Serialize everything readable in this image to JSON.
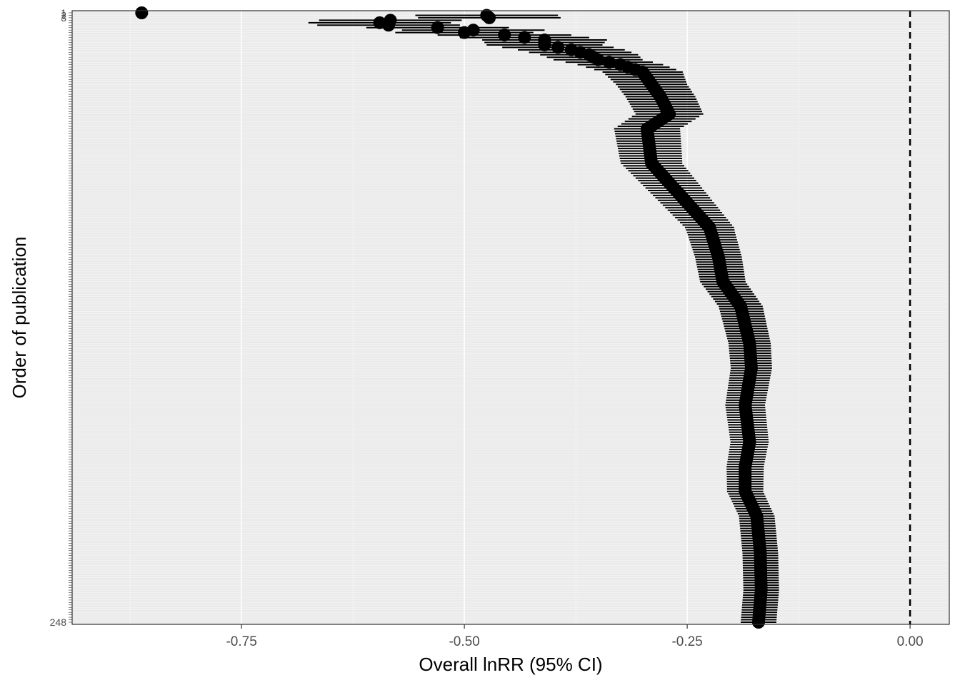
{
  "chart_data": {
    "type": "forest",
    "xlabel": "Overall lnRR (95% CI)",
    "ylabel": "Order of publication",
    "xlim": [
      -0.94,
      0.044
    ],
    "x_ticks": [
      -0.75,
      -0.5,
      -0.25,
      0.0
    ],
    "x_tick_labels": [
      "-0.75",
      "-0.50",
      "-0.25",
      "0.00"
    ],
    "reference_line": 0.0,
    "n_studies": 248,
    "y_tick_labels_visible": [
      "1",
      "2",
      "3",
      "248"
    ],
    "estimate_knots": [
      [
        1,
        -0.862
      ],
      [
        2,
        -0.475
      ],
      [
        3,
        -0.472
      ],
      [
        4,
        -0.583
      ],
      [
        5,
        -0.595
      ],
      [
        6,
        -0.585
      ],
      [
        7,
        -0.53
      ],
      [
        8,
        -0.49
      ],
      [
        9,
        -0.5
      ],
      [
        10,
        -0.455
      ],
      [
        12,
        -0.41
      ],
      [
        14,
        -0.41
      ],
      [
        16,
        -0.38
      ],
      [
        18,
        -0.36
      ],
      [
        20,
        -0.35
      ],
      [
        22,
        -0.325
      ],
      [
        25,
        -0.3
      ],
      [
        35,
        -0.28
      ],
      [
        42,
        -0.27
      ],
      [
        48,
        -0.295
      ],
      [
        62,
        -0.29
      ],
      [
        72,
        -0.265
      ],
      [
        78,
        -0.25
      ],
      [
        88,
        -0.225
      ],
      [
        100,
        -0.215
      ],
      [
        110,
        -0.21
      ],
      [
        120,
        -0.19
      ],
      [
        135,
        -0.18
      ],
      [
        145,
        -0.178
      ],
      [
        160,
        -0.185
      ],
      [
        175,
        -0.18
      ],
      [
        185,
        -0.185
      ],
      [
        195,
        -0.185
      ],
      [
        205,
        -0.172
      ],
      [
        220,
        -0.168
      ],
      [
        235,
        -0.167
      ],
      [
        248,
        -0.17
      ]
    ],
    "ci_halfwidth_knots": [
      [
        1,
        0.0
      ],
      [
        2,
        0.08
      ],
      [
        8,
        0.08
      ],
      [
        12,
        0.07
      ],
      [
        20,
        0.05
      ],
      [
        30,
        0.04
      ],
      [
        60,
        0.035
      ],
      [
        90,
        0.027
      ],
      [
        130,
        0.024
      ],
      [
        200,
        0.02
      ],
      [
        248,
        0.02
      ]
    ],
    "grid": true,
    "legend": "none"
  }
}
